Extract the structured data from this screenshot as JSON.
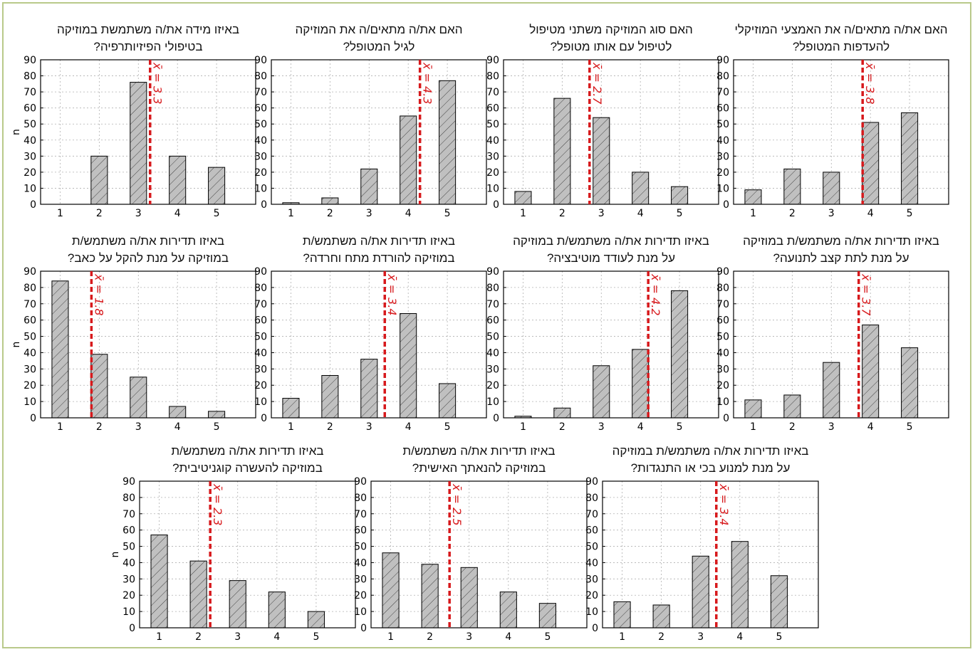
{
  "chart_data": [
    {
      "type": "bar",
      "title_lines": [
        "האם את/ה מתאים/ה את האמצעי המוזיקלי",
        "להעדפות המטופל?"
      ],
      "categories": [
        "1",
        "2",
        "3",
        "4",
        "5"
      ],
      "values": [
        9,
        22,
        20,
        51,
        57
      ],
      "mean_label": "x̄ = 3.8",
      "mean": 3.8,
      "ylim": [
        0,
        90
      ],
      "yticks": [
        0,
        10,
        20,
        30,
        40,
        50,
        60,
        70,
        80,
        90
      ]
    },
    {
      "type": "bar",
      "title_lines": [
        "האם סוג המוזיקה משתני מטיפול",
        "לטיפול עם אותו מטופל?"
      ],
      "categories": [
        "1",
        "2",
        "3",
        "4",
        "5"
      ],
      "values": [
        8,
        66,
        54,
        20,
        11
      ],
      "mean_label": "x̄ = 2.7",
      "mean": 2.7,
      "ylim": [
        0,
        90
      ],
      "yticks": [
        0,
        10,
        20,
        30,
        40,
        50,
        60,
        70,
        80,
        90
      ]
    },
    {
      "type": "bar",
      "title_lines": [
        "האם את/ה מתאים/ה את המוזיקה",
        "לגיל המטופל?"
      ],
      "categories": [
        "1",
        "2",
        "3",
        "4",
        "5"
      ],
      "values": [
        1,
        4,
        22,
        55,
        77
      ],
      "mean_label": "x̄ = 4.3",
      "mean": 4.3,
      "ylim": [
        0,
        90
      ],
      "yticks": [
        0,
        10,
        20,
        30,
        40,
        50,
        60,
        70,
        80,
        90
      ]
    },
    {
      "type": "bar",
      "title_lines": [
        "באיזו מידה את/ה משתמשת במוזיקה",
        "בטיפולי הפיזיותרפיה?"
      ],
      "categories": [
        "1",
        "2",
        "3",
        "4",
        "5"
      ],
      "values": [
        0,
        30,
        76,
        30,
        23
      ],
      "mean_label": "x̄ = 3.3",
      "mean": 3.3,
      "ylabel": "n",
      "ylim": [
        0,
        90
      ],
      "yticks": [
        0,
        10,
        20,
        30,
        40,
        50,
        60,
        70,
        80,
        90
      ]
    },
    {
      "type": "bar",
      "title_lines": [
        "באיזו תדירות את/ה משתמש/ת במוזיקה",
        "על מנת לתת קצב לתנועה?"
      ],
      "categories": [
        "1",
        "2",
        "3",
        "4",
        "5"
      ],
      "values": [
        11,
        14,
        34,
        57,
        43
      ],
      "mean_label": "x̄ = 3.7",
      "mean": 3.7,
      "ylim": [
        0,
        90
      ],
      "yticks": [
        0,
        10,
        20,
        30,
        40,
        50,
        60,
        70,
        80,
        90
      ]
    },
    {
      "type": "bar",
      "title_lines": [
        "באיזו תדירות את/ה משתמש/ת במוזיקה",
        "על מנת לעודד מוטיבציה?"
      ],
      "categories": [
        "1",
        "2",
        "3",
        "4",
        "5"
      ],
      "values": [
        1,
        6,
        32,
        42,
        78
      ],
      "mean_label": "x̄ = 4.2",
      "mean": 4.2,
      "ylim": [
        0,
        90
      ],
      "yticks": [
        0,
        10,
        20,
        30,
        40,
        50,
        60,
        70,
        80,
        90
      ]
    },
    {
      "type": "bar",
      "title_lines": [
        "באיזו תדירות את/ה משתמש/ת",
        "במוזיקה להורדת מתח וחרדה?"
      ],
      "categories": [
        "1",
        "2",
        "3",
        "4",
        "5"
      ],
      "values": [
        12,
        26,
        36,
        64,
        21
      ],
      "mean_label": "x̄ = 3.4",
      "mean": 3.4,
      "ylim": [
        0,
        90
      ],
      "yticks": [
        0,
        10,
        20,
        30,
        40,
        50,
        60,
        70,
        80,
        90
      ]
    },
    {
      "type": "bar",
      "title_lines": [
        "באיזו תדירות את/ה משתמש/ת",
        "במוזיקה על מנת להקל על כאב?"
      ],
      "categories": [
        "1",
        "2",
        "3",
        "4",
        "5"
      ],
      "values": [
        84,
        39,
        25,
        7,
        4
      ],
      "mean_label": "x̄ = 1.8",
      "mean": 1.8,
      "ylabel": "n",
      "ylim": [
        0,
        90
      ],
      "yticks": [
        0,
        10,
        20,
        30,
        40,
        50,
        60,
        70,
        80,
        90
      ]
    },
    {
      "type": "bar",
      "title_lines": [
        "באיזו תדירות את/ה משתמש/ת במוזיקה",
        "על מנת למנוע בכי או התנגדות?"
      ],
      "categories": [
        "1",
        "2",
        "3",
        "4",
        "5"
      ],
      "values": [
        16,
        14,
        44,
        53,
        32
      ],
      "mean_label": "x̄ = 3.4",
      "mean": 3.4,
      "ylim": [
        0,
        90
      ],
      "yticks": [
        0,
        10,
        20,
        30,
        40,
        50,
        60,
        70,
        80,
        90
      ]
    },
    {
      "type": "bar",
      "title_lines": [
        "באיזו תדירות את/ה משתמש/ת",
        "במוזיקה להנאתך האישית?"
      ],
      "categories": [
        "1",
        "2",
        "3",
        "4",
        "5"
      ],
      "values": [
        46,
        39,
        37,
        22,
        15
      ],
      "mean_label": "x̄ = 2.5",
      "mean": 2.5,
      "ylim": [
        0,
        90
      ],
      "yticks": [
        0,
        10,
        20,
        30,
        40,
        50,
        60,
        70,
        80,
        90
      ]
    },
    {
      "type": "bar",
      "title_lines": [
        "באיזו תדירות את/ה משתמש/ת",
        "במוזיקה להעשרה קוגניטיבית?"
      ],
      "categories": [
        "1",
        "2",
        "3",
        "4",
        "5"
      ],
      "values": [
        57,
        41,
        29,
        22,
        10
      ],
      "mean_label": "x̄ = 2.3",
      "mean": 2.3,
      "ylabel": "n",
      "ylim": [
        0,
        90
      ],
      "yticks": [
        0,
        10,
        20,
        30,
        40,
        50,
        60,
        70,
        80,
        90
      ]
    }
  ],
  "style": {
    "bar_fill": "#c0c0c0",
    "bar_stroke": "#000000",
    "mean_color": "#d7191c",
    "grid_color": "#b0b0b0"
  }
}
